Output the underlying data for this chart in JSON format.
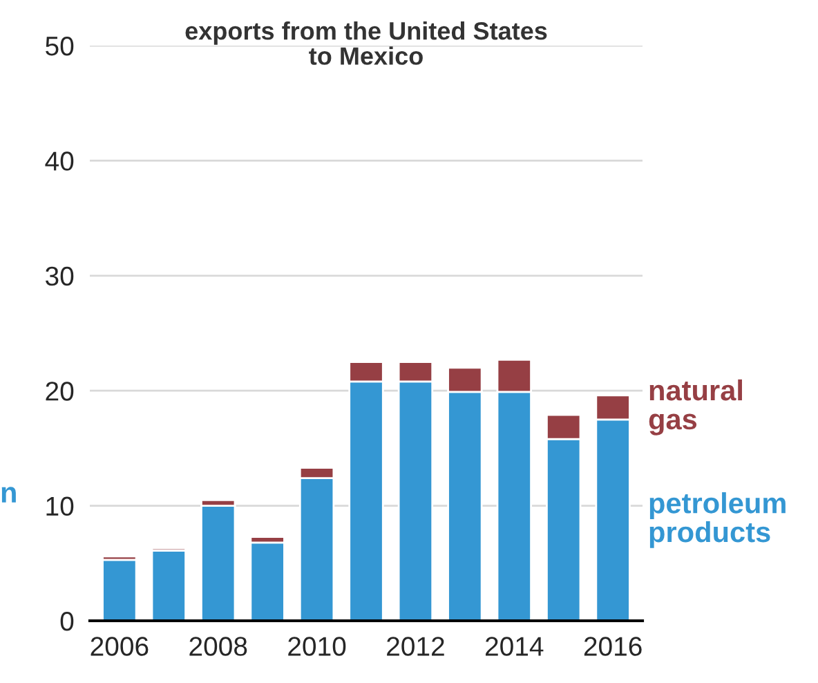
{
  "chart_data": {
    "type": "bar",
    "title": "exports from the United States\nto Mexico",
    "stacked": true,
    "categories": [
      "2006",
      null,
      "2008",
      null,
      "2010",
      null,
      "2012",
      null,
      "2014",
      null,
      "2016"
    ],
    "series": [
      {
        "name": "petroleum\nproducts",
        "color": "#3497d3",
        "values": [
          5.3,
          6.1,
          10.0,
          6.8,
          12.4,
          20.8,
          20.8,
          19.9,
          19.9,
          15.8,
          17.5
        ]
      },
      {
        "name": "natural\ngas",
        "color": "#963f44",
        "values": [
          0.3,
          0.2,
          0.5,
          0.5,
          0.9,
          1.7,
          1.7,
          2.1,
          2.8,
          2.1,
          2.1
        ]
      }
    ],
    "ylim": [
      0,
      50
    ],
    "yticks": [
      0,
      10,
      20,
      30,
      40,
      50
    ],
    "grid": "y",
    "legend": false,
    "annotations": [
      "n"
    ]
  }
}
